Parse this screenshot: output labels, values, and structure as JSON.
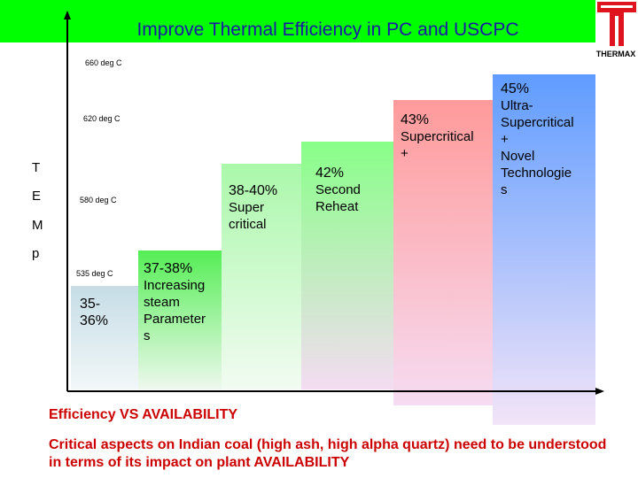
{
  "title": "Improve Thermal Efficiency in PC and USCPC",
  "logo": {
    "text": "THERMAX"
  },
  "temperatures": [
    "660 deg C",
    "620 deg C",
    "580 deg C",
    "535 deg C"
  ],
  "axis_letters": [
    "T",
    "E",
    "M",
    "p"
  ],
  "steps": [
    {
      "lines": [
        "35-",
        "36%"
      ]
    },
    {
      "lines": [
        "37-38%",
        "Increasing",
        "steam",
        "Parameter",
        "s"
      ]
    },
    {
      "lines": [
        "38-40%",
        "Super",
        "critical"
      ]
    },
    {
      "lines": [
        "42%",
        "Second",
        "Reheat"
      ]
    },
    {
      "lines": [
        "43%",
        "Supercritical",
        "+"
      ]
    },
    {
      "lines": [
        "45%",
        "Ultra-",
        "Supercritical",
        "+",
        "Novel",
        "Technologie",
        "s"
      ]
    }
  ],
  "colors": {
    "title_bar": "#00ff00",
    "title_text": "#1a1aa6",
    "red_text": "#cc0000"
  },
  "bottom": {
    "heading": "Efficiency VS AVAILABILITY",
    "text": "Critical aspects on Indian coal (high ash, high alpha quartz) need to be understood in terms of its impact on plant AVAILABILITY"
  }
}
